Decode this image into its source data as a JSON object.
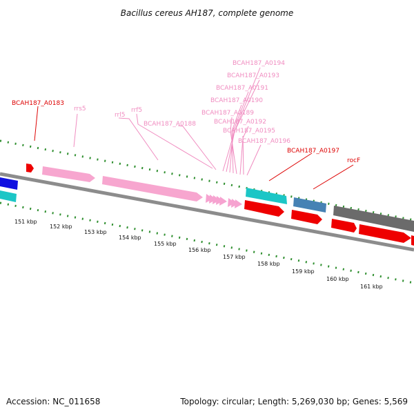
{
  "title": "Bacillus cereus AH187, complete genome",
  "footer": {
    "accession": "Accession: NC_011658",
    "summary": "Topology: circular; Length: 5,269,030 bp; Genes: 5,569"
  },
  "scale_labels": [
    "151 kbp",
    "152 kbp",
    "153 kbp",
    "154 kbp",
    "155 kbp",
    "156 kbp",
    "157 kbp",
    "158 kbp",
    "159 kbp",
    "160 kbp",
    "161 kbp"
  ],
  "gene_labels": [
    {
      "text": "BCAH187_A0183",
      "color": "#dd0000"
    },
    {
      "text": "rrs5",
      "color": "#f08cc0"
    },
    {
      "text": "rrl5",
      "color": "#f08cc0"
    },
    {
      "text": "rrf5",
      "color": "#f08cc0"
    },
    {
      "text": "BCAH187_A0188",
      "color": "#f08cc0"
    },
    {
      "text": "BCAH187_A0194",
      "color": "#f08cc0"
    },
    {
      "text": "BCAH187_A0193",
      "color": "#f08cc0"
    },
    {
      "text": "BCAH187_A0191",
      "color": "#f08cc0"
    },
    {
      "text": "BCAH187_A0190",
      "color": "#f08cc0"
    },
    {
      "text": "BCAH187_A0189",
      "color": "#f08cc0"
    },
    {
      "text": "BCAH187_A0192",
      "color": "#f08cc0"
    },
    {
      "text": "BCAH187_A0195",
      "color": "#f08cc0"
    },
    {
      "text": "BCAH187_A0196",
      "color": "#f08cc0"
    },
    {
      "text": "BCAH187_A0197",
      "color": "#dd0000"
    },
    {
      "text": "rocF",
      "color": "#dd0000"
    }
  ],
  "colors": {
    "cds_red": "#ee0000",
    "rrna_pink": "#f7a6cf",
    "trna_pink": "#f6a3d0",
    "cyan": "#1cc6c6",
    "blue": "#1010e0",
    "steel_blue": "#4682b4",
    "gray": "#6b6b6b",
    "backbone": "#8c8c8c",
    "ticks": "#2f8f2f"
  }
}
